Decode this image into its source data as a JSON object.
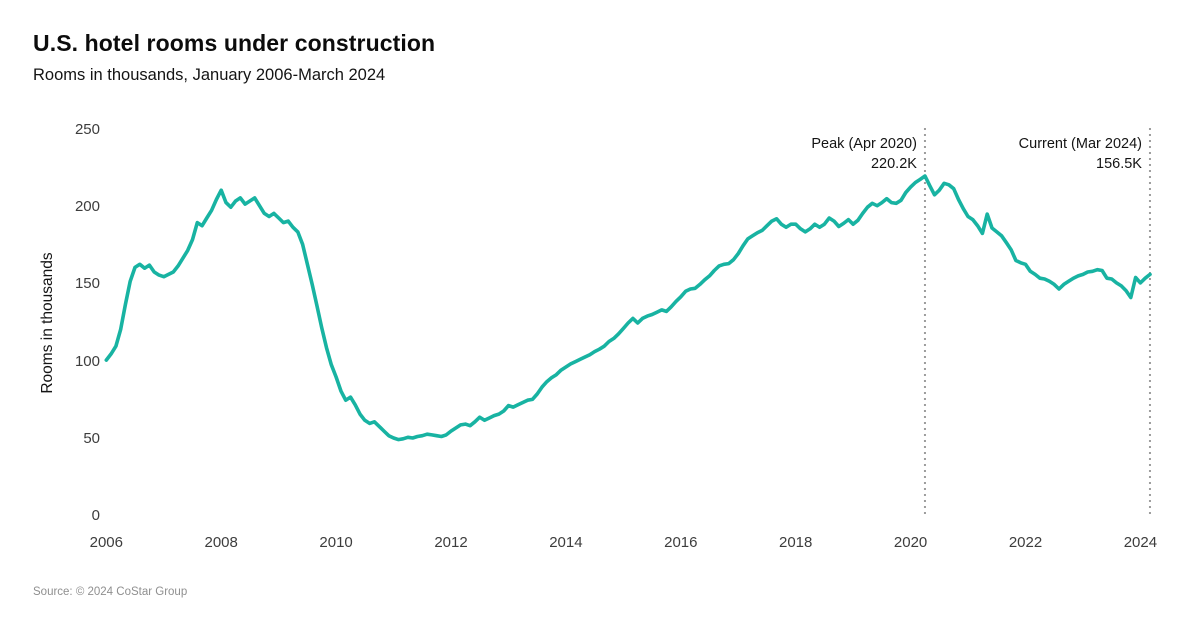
{
  "header": {
    "title": "U.S. hotel rooms under construction",
    "subtitle": "Rooms in thousands, January 2006-March 2024"
  },
  "source": "Source: © 2024 CoStar Group",
  "colors": {
    "line": "#18b3a2",
    "annotation_rule": "#9d9d9d",
    "tick_text": "#3d3d3d",
    "text": "#141414",
    "source_text": "#8f8f8f",
    "background": "#ffffff"
  },
  "chart_data": {
    "type": "line",
    "title": "U.S. hotel rooms under construction",
    "subtitle": "Rooms in thousands, January 2006-March 2024",
    "xlabel": "",
    "ylabel": "Rooms in thousands",
    "grid": false,
    "legend": false,
    "ylim": [
      0,
      250
    ],
    "xlim": [
      2006.0,
      2024.42
    ],
    "y_ticks": [
      0,
      50,
      100,
      150,
      200,
      250
    ],
    "x_ticks": [
      2006,
      2008,
      2010,
      2012,
      2014,
      2016,
      2018,
      2020,
      2022,
      2024
    ],
    "x_unit": "monthly, decimal years",
    "series": [
      {
        "name": "Rooms under construction (thousands)",
        "start_year": 2006,
        "start_month": 1,
        "end_year": 2024,
        "end_month": 3,
        "values": [
          101,
          105,
          110,
          121,
          137,
          152,
          161,
          163,
          160.5,
          162.5,
          158,
          156,
          155,
          156.5,
          158,
          162,
          167,
          172,
          179,
          190,
          188,
          193,
          198,
          205,
          211,
          203,
          200,
          204,
          206,
          202,
          204,
          206,
          201,
          196,
          194,
          196,
          193,
          190,
          191,
          187,
          184,
          176,
          163,
          150,
          136,
          122,
          109,
          98,
          90,
          81,
          75,
          77,
          72,
          66,
          62,
          60,
          61,
          58,
          55,
          52,
          50.5,
          49.5,
          50,
          51,
          50.5,
          51.5,
          52,
          53,
          52.5,
          52,
          51.5,
          52.5,
          55,
          57,
          59,
          59.5,
          58.5,
          61,
          64,
          62,
          63.5,
          65,
          66,
          68,
          71.5,
          70.5,
          72,
          73.5,
          75,
          75.5,
          79,
          83.5,
          87,
          89.5,
          91.5,
          94.5,
          96.5,
          98.5,
          100,
          101.5,
          103,
          104.5,
          106.5,
          108,
          110,
          113,
          115,
          118,
          121.5,
          125,
          128,
          125,
          128,
          129.5,
          130.5,
          132,
          133.5,
          132.5,
          135.5,
          139,
          142,
          145.5,
          147,
          147.5,
          150,
          153,
          155.5,
          159,
          162,
          163,
          163.5,
          166,
          170,
          175,
          179.5,
          181.5,
          183.5,
          185,
          188,
          191,
          192.5,
          189,
          187,
          189,
          189,
          186,
          184,
          186,
          189,
          187,
          189,
          193,
          191,
          187.5,
          189.5,
          192,
          189,
          191.5,
          196,
          200,
          202.5,
          201,
          203,
          205.5,
          203,
          202.5,
          204.5,
          209.5,
          213,
          216,
          218,
          220.2,
          214,
          208,
          211,
          215.5,
          214.5,
          212,
          205,
          199,
          194,
          192,
          188,
          183,
          195.5,
          186.5,
          184,
          181.5,
          177,
          172.5,
          165.5,
          164,
          163,
          158.5,
          156.5,
          154,
          153.5,
          152,
          150,
          147,
          150,
          152,
          154,
          155.5,
          156.5,
          158,
          158.5,
          159.5,
          159,
          154,
          153.5,
          151,
          149,
          146,
          141.5,
          154.5,
          151,
          154,
          156.5
        ]
      }
    ],
    "annotations": [
      {
        "id": "peak",
        "label": "Peak (Apr 2020)",
        "value_label": "220.2K",
        "x_year": 2020.25
      },
      {
        "id": "current",
        "label": "Current (Mar 2024)",
        "value_label": "156.5K",
        "x_year": 2024.1667
      }
    ]
  }
}
